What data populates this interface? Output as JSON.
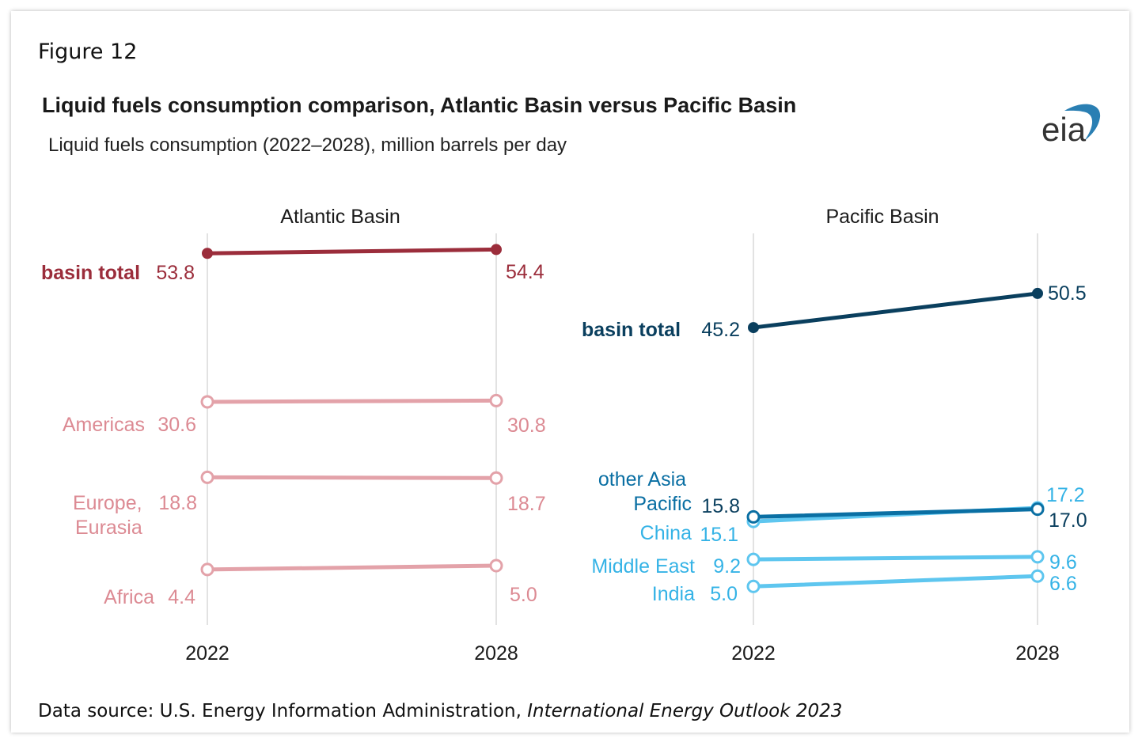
{
  "figure_label": "Figure 12",
  "source": {
    "prefix": "Data source: U.S. Energy Information Administration, ",
    "publication": "International Energy Outlook 2023"
  },
  "logo_text": "eia",
  "chart_data": {
    "type": "line",
    "title": "Liquid fuels consumption comparison, Atlantic Basin versus Pacific Basin",
    "subtitle": "Liquid fuels consumption (2022–2028), million barrels per day",
    "x": [
      "2022",
      "2028"
    ],
    "panels": [
      {
        "name": "Atlantic Basin",
        "series": [
          {
            "name": "basin total",
            "values": [
              53.8,
              54.4
            ],
            "labels": [
              "53.8",
              "54.4"
            ],
            "color": "#9b2d3b",
            "bold": true,
            "filled": true
          },
          {
            "name": "Americas",
            "values": [
              30.6,
              30.8
            ],
            "labels": [
              "30.6",
              "30.8"
            ],
            "color": "#e3a2a9",
            "bold": false,
            "filled": false
          },
          {
            "name": "Europe, Eurasia",
            "values": [
              18.8,
              18.7
            ],
            "labels": [
              "18.8",
              "18.7"
            ],
            "color": "#e3a2a9",
            "bold": false,
            "filled": false
          },
          {
            "name": "Africa",
            "values": [
              4.4,
              5.0
            ],
            "labels": [
              "4.4",
              "5.0"
            ],
            "color": "#e3a2a9",
            "bold": false,
            "filled": false
          }
        ]
      },
      {
        "name": "Pacific Basin",
        "series": [
          {
            "name": "basin total",
            "values": [
              45.2,
              50.5
            ],
            "labels": [
              "45.2",
              "50.5"
            ],
            "color": "#0a3f5e",
            "bold": true,
            "filled": true
          },
          {
            "name": "other Asia Pacific",
            "values": [
              15.8,
              17.0
            ],
            "labels": [
              "15.8",
              "17.0"
            ],
            "color": "#0a6fa3",
            "bold": false,
            "filled": false
          },
          {
            "name": "China",
            "values": [
              15.1,
              17.2
            ],
            "labels": [
              "15.1",
              "17.2"
            ],
            "color": "#5ec6ef",
            "bold": false,
            "filled": false
          },
          {
            "name": "Middle East",
            "values": [
              9.2,
              9.6
            ],
            "labels": [
              "9.2",
              "9.6"
            ],
            "color": "#5ec6ef",
            "bold": false,
            "filled": false
          },
          {
            "name": "India",
            "values": [
              5.0,
              6.6
            ],
            "labels": [
              "5.0",
              "6.6"
            ],
            "color": "#5ec6ef",
            "bold": false,
            "filled": false
          }
        ]
      }
    ]
  }
}
